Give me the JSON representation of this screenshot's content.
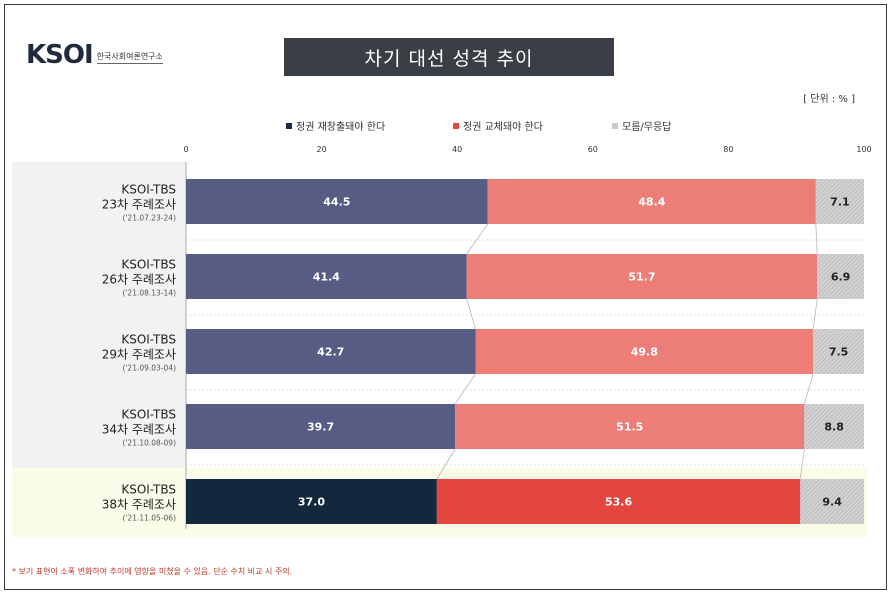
{
  "logo": {
    "mark": "KSOI",
    "subtitle": "한국사회여론연구소"
  },
  "title": "차기 대선 성격 추이",
  "unit": "[ 단위 : % ]",
  "footnote": "* 보기 표현이 소폭 변화하여 추이에 영향을 미쳤을 수 있음. 단순 수치 비교 시 주의.",
  "colors": {
    "series_1": "#565c83",
    "series_1_latest": "#13283d",
    "series_2": "#ec7d77",
    "series_2_latest": "#e2463f",
    "series_3": "#c9c9c9",
    "label_band": "#f2f2f2",
    "latest_band": "#fbfbe9"
  },
  "chart_data": {
    "type": "bar",
    "orientation": "horizontal",
    "stacked": true,
    "xlim": [
      0,
      100
    ],
    "xticks": [
      0,
      20,
      40,
      60,
      80,
      100
    ],
    "legend_position": "top",
    "categories": [
      {
        "line1": "KSOI-TBS",
        "line2": "23차 주례조사",
        "line3": "('21.07.23-24)"
      },
      {
        "line1": "KSOI-TBS",
        "line2": "26차 주례조사",
        "line3": "('21.08.13-14)"
      },
      {
        "line1": "KSOI-TBS",
        "line2": "29차 주례조사",
        "line3": "('21.09.03-04)"
      },
      {
        "line1": "KSOI-TBS",
        "line2": "34차 주례조사",
        "line3": "('21.10.08-09)"
      },
      {
        "line1": "KSOI-TBS",
        "line2": "38차 주례조사",
        "line3": "('21.11.05-06)"
      }
    ],
    "series": [
      {
        "name": "정권 재창출돼야 한다",
        "values": [
          44.5,
          41.4,
          42.7,
          39.7,
          37.0
        ]
      },
      {
        "name": "정권 교체돼야 한다",
        "values": [
          48.4,
          51.7,
          49.8,
          51.5,
          53.6
        ]
      },
      {
        "name": "모름/무응답",
        "values": [
          7.1,
          6.9,
          7.5,
          8.8,
          9.4
        ]
      }
    ]
  }
}
